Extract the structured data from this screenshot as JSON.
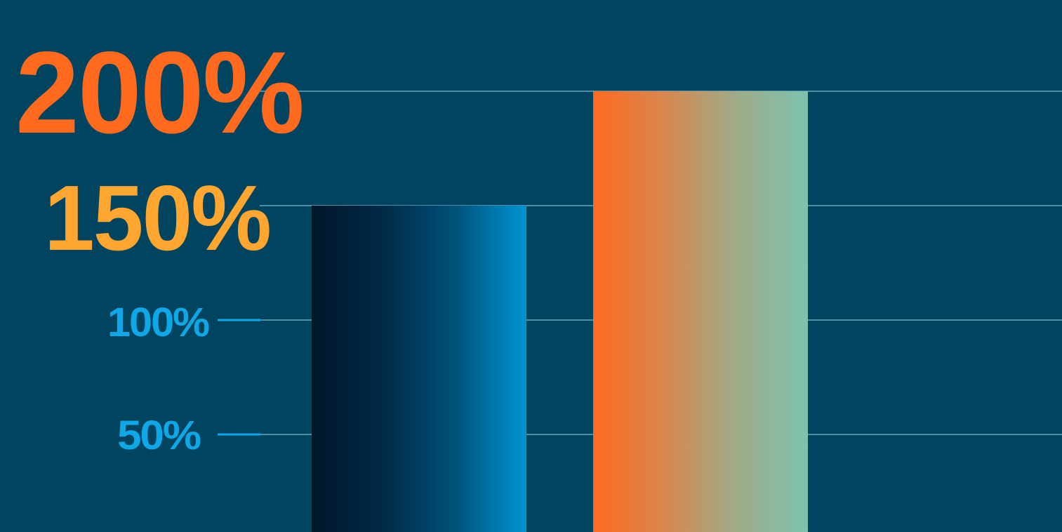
{
  "chart_data": {
    "type": "bar",
    "title": "",
    "xlabel": "",
    "ylabel": "",
    "ylim": [
      0,
      200
    ],
    "grid": true,
    "y_ticks": [
      {
        "value": 50,
        "label": "50%",
        "color": "#0ea7e8"
      },
      {
        "value": 100,
        "label": "100%",
        "color": "#0ea7e8"
      },
      {
        "value": 150,
        "label": "150%",
        "color": "#ffa630"
      },
      {
        "value": 200,
        "label": "200%",
        "color": "#ff6a1f"
      }
    ],
    "categories": [
      "",
      ""
    ],
    "values": [
      150,
      200
    ],
    "bar_colors": [
      [
        "#01172a",
        "#002a48",
        "#00527a",
        "#0094d2"
      ],
      [
        "#ff6a1f",
        "#d7874f",
        "#9fab88",
        "#7ec2ae"
      ]
    ]
  },
  "colors": {
    "background": "#01445f",
    "gridline": "#4f8ea8",
    "tick_mark": "#0ea7e8"
  }
}
